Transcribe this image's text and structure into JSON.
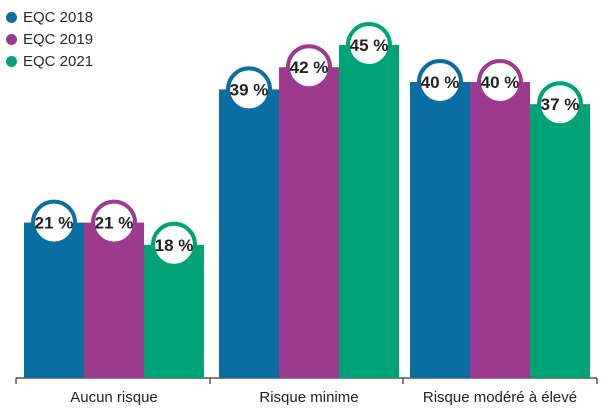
{
  "chart_data": {
    "type": "bar",
    "categories": [
      "Aucun risque",
      "Risque minime",
      "Risque modéré à élevé"
    ],
    "series": [
      {
        "name": "EQC 2018",
        "color": "#0a6ea3",
        "values": [
          21,
          39,
          40
        ],
        "labels": [
          "21 %",
          "39 %",
          "40 %"
        ]
      },
      {
        "name": "EQC 2019",
        "color": "#9e3a8e",
        "values": [
          21,
          42,
          40
        ],
        "labels": [
          "21 %",
          "42 %",
          "40 %"
        ]
      },
      {
        "name": "EQC 2021",
        "color": "#00a277",
        "values": [
          18,
          45,
          37
        ],
        "labels": [
          "18 %",
          "45 %",
          "37 %"
        ]
      }
    ],
    "ylim": [
      0,
      48
    ],
    "legend_position": "top-left",
    "grid": false,
    "title": "",
    "xlabel": "",
    "ylabel": ""
  }
}
